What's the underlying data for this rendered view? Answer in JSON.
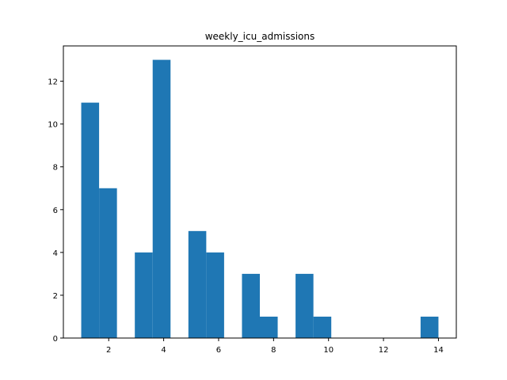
{
  "chart_data": {
    "type": "bar",
    "title": "weekly_icu_admissions",
    "xlabel": "",
    "ylabel": "",
    "bins": [
      {
        "x0": 1.0,
        "x1": 1.65,
        "count": 11
      },
      {
        "x0": 1.65,
        "x1": 2.3,
        "count": 7
      },
      {
        "x0": 2.3,
        "x1": 2.95,
        "count": 0
      },
      {
        "x0": 2.95,
        "x1": 3.6,
        "count": 4
      },
      {
        "x0": 3.6,
        "x1": 4.25,
        "count": 13
      },
      {
        "x0": 4.25,
        "x1": 4.9,
        "count": 0
      },
      {
        "x0": 4.9,
        "x1": 5.55,
        "count": 5
      },
      {
        "x0": 5.55,
        "x1": 6.2,
        "count": 4
      },
      {
        "x0": 6.2,
        "x1": 6.85,
        "count": 0
      },
      {
        "x0": 6.85,
        "x1": 7.5,
        "count": 3
      },
      {
        "x0": 7.5,
        "x1": 8.15,
        "count": 1
      },
      {
        "x0": 8.15,
        "x1": 8.8,
        "count": 0
      },
      {
        "x0": 8.8,
        "x1": 9.45,
        "count": 3
      },
      {
        "x0": 9.45,
        "x1": 10.1,
        "count": 1
      },
      {
        "x0": 10.1,
        "x1": 10.75,
        "count": 0
      },
      {
        "x0": 10.75,
        "x1": 11.4,
        "count": 0
      },
      {
        "x0": 11.4,
        "x1": 12.05,
        "count": 0
      },
      {
        "x0": 12.05,
        "x1": 12.7,
        "count": 0
      },
      {
        "x0": 12.7,
        "x1": 13.35,
        "count": 0
      },
      {
        "x0": 13.35,
        "x1": 14.0,
        "count": 1
      }
    ],
    "xlim": [
      0.35,
      14.65
    ],
    "ylim": [
      0,
      13.65
    ],
    "xticks": [
      2,
      4,
      6,
      8,
      10,
      12,
      14
    ],
    "yticks": [
      0,
      2,
      4,
      6,
      8,
      10,
      12
    ],
    "bar_color": "#1f77b4",
    "grid": false,
    "legend": "none"
  }
}
